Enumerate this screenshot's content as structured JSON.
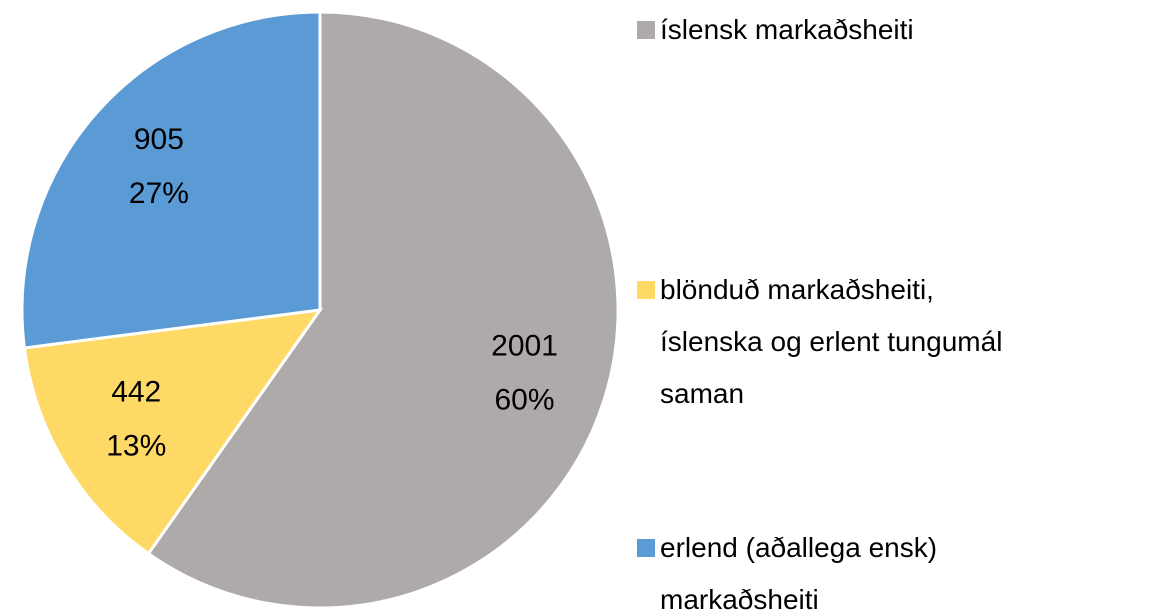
{
  "chart_data": {
    "type": "pie",
    "categories": [
      "íslensk markaðsheiti",
      "blönduð markaðsheiti, íslenska og erlent tungumál saman",
      "erlend (aðallega ensk) markaðsheiti"
    ],
    "values": [
      2001,
      442,
      905
    ],
    "percent_labels": [
      "60%",
      "13%",
      "27%"
    ],
    "colors": [
      "#aeaaaa",
      "#ffd966",
      "#5b9bd5"
    ],
    "legend": "right"
  }
}
